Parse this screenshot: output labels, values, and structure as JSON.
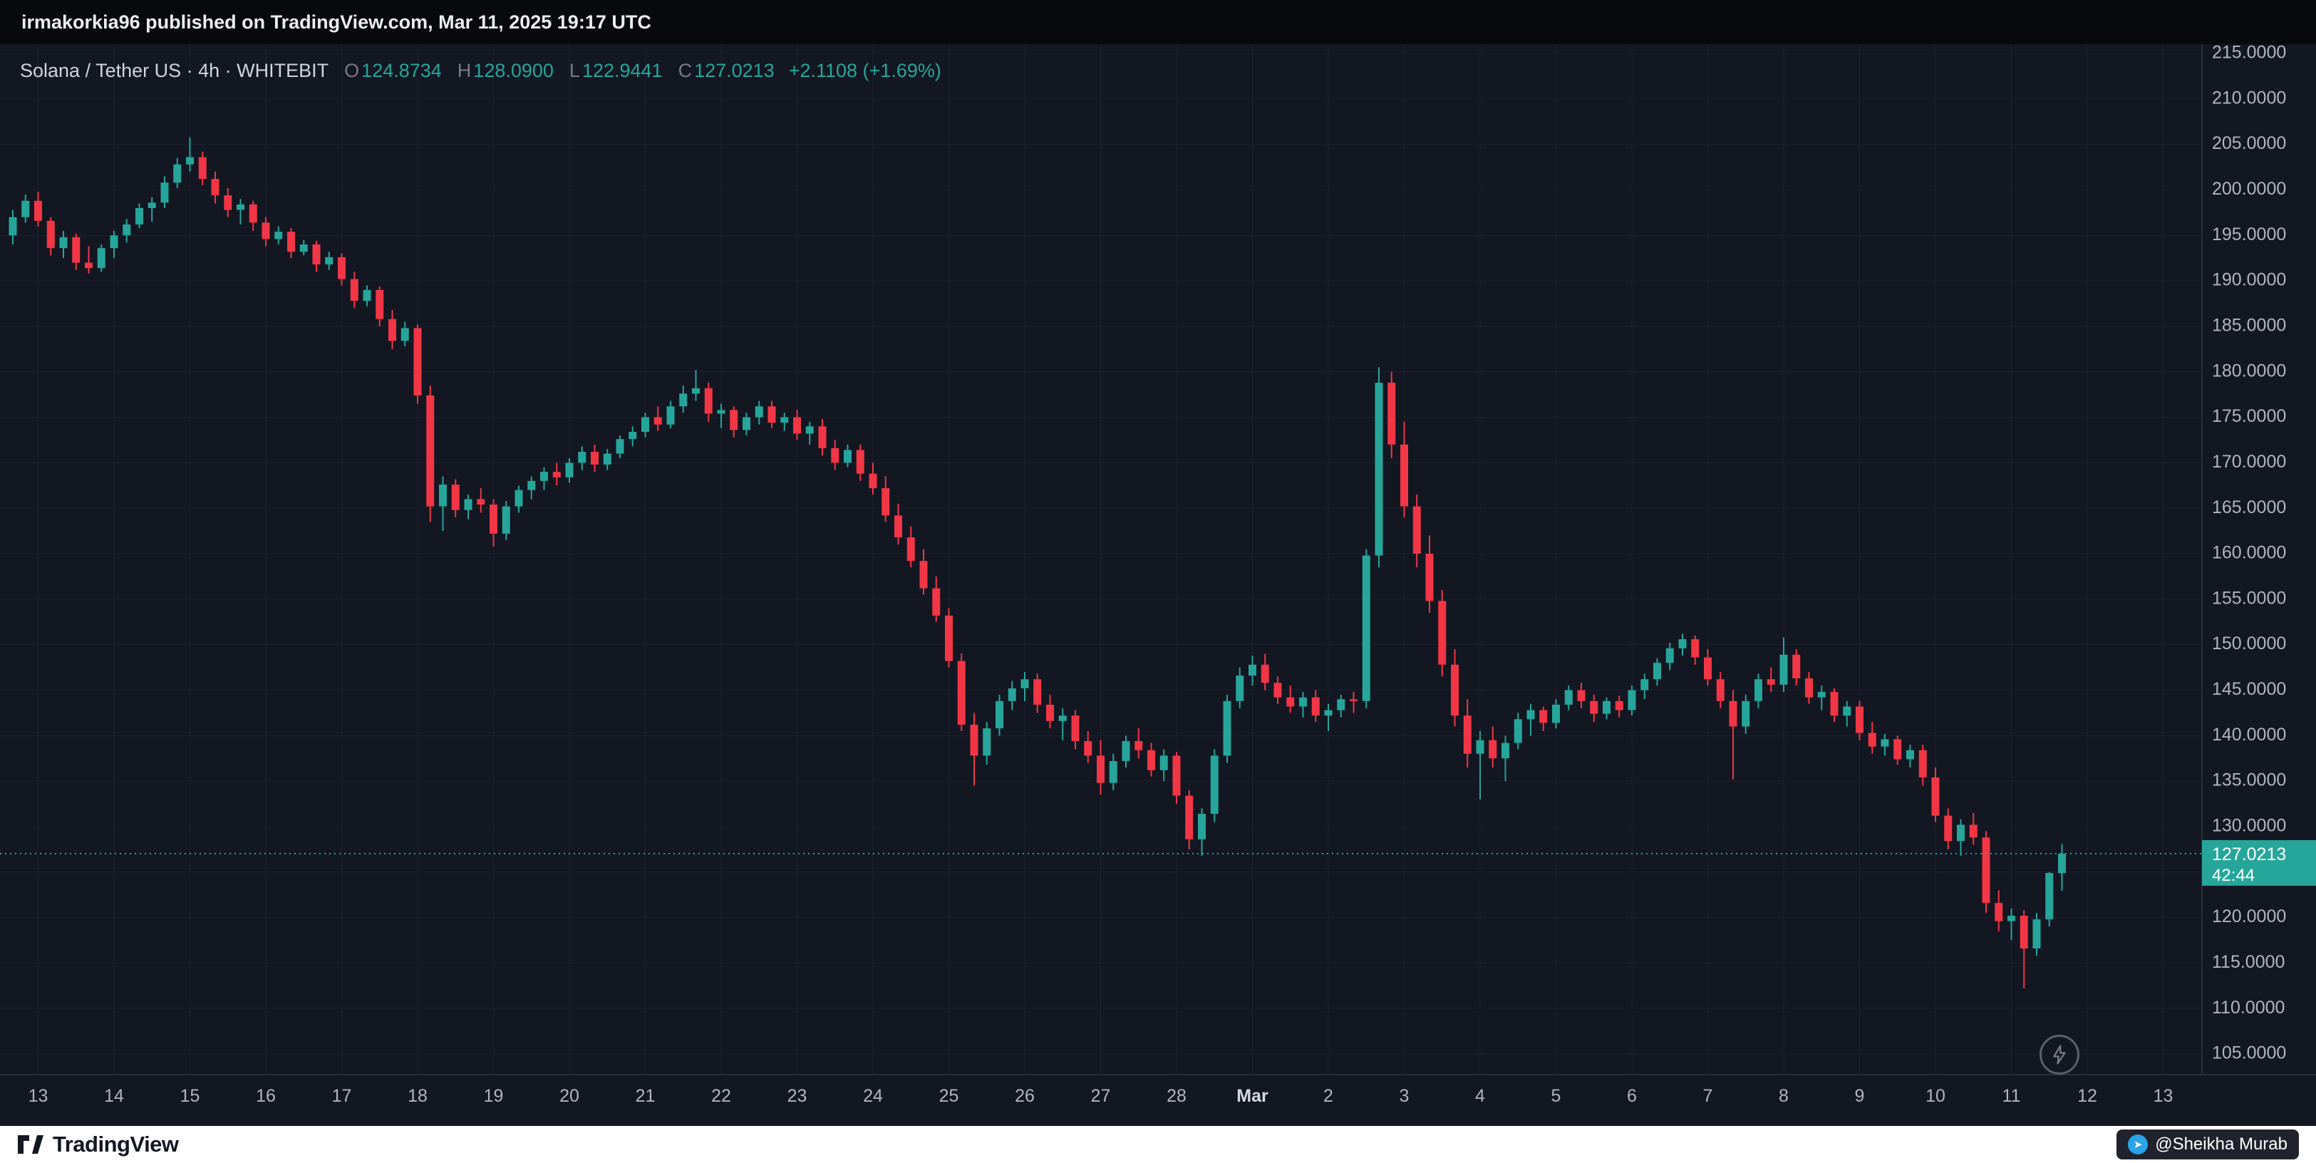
{
  "top_bar": {
    "text": "irmakorkia96 published on TradingView.com, Mar 11, 2025 19:17 UTC"
  },
  "header": {
    "symbol": "Solana / Tether US · 4h · WHITEBIT",
    "open_label": "O",
    "open": "124.8734",
    "high_label": "H",
    "high": "128.0900",
    "low_label": "L",
    "low": "122.9441",
    "close_label": "C",
    "close": "127.0213",
    "change": "+2.1108 (+1.69%)"
  },
  "footer": {
    "brand": "TradingView",
    "watermark": "@Sheikha Murab"
  },
  "icons": {
    "chart_action": "lightning-bolt-icon",
    "footer_logo": "tradingview-logo-icon",
    "watermark_icon": "paper-plane-icon"
  },
  "colors": {
    "up": "#26a69a",
    "down": "#f23645",
    "bg": "#131722",
    "grid": "#1e222f",
    "axis_line": "#2a2e39",
    "axis_text": "#b2b5be",
    "badge_text": "#ffffff",
    "top_bar_bg": "#08090d",
    "bottom_bar_bg": "#ffffff"
  },
  "chart_data": {
    "type": "candlestick",
    "title": "Solana / Tether US",
    "exchange": "WHITEBIT",
    "timeframe": "4h",
    "timezone": "UTC",
    "first_candle_time": "2025-02-12 16:00",
    "interval_hours": 4,
    "grid": true,
    "price_axis": {
      "min": 105,
      "max": 215,
      "step": 5
    },
    "price_ticks": [
      "215.0000",
      "210.0000",
      "205.0000",
      "200.0000",
      "195.0000",
      "190.0000",
      "185.0000",
      "180.0000",
      "175.0000",
      "170.0000",
      "165.0000",
      "160.0000",
      "155.0000",
      "150.0000",
      "145.0000",
      "140.0000",
      "135.0000",
      "130.0000",
      "125.0000",
      "120.0000",
      "115.0000",
      "110.0000",
      "105.0000"
    ],
    "time_ticks": [
      {
        "text": "13",
        "ci": 2
      },
      {
        "text": "14",
        "ci": 8
      },
      {
        "text": "15",
        "ci": 14
      },
      {
        "text": "16",
        "ci": 20
      },
      {
        "text": "17",
        "ci": 26
      },
      {
        "text": "18",
        "ci": 32
      },
      {
        "text": "19",
        "ci": 38
      },
      {
        "text": "20",
        "ci": 44
      },
      {
        "text": "21",
        "ci": 50
      },
      {
        "text": "22",
        "ci": 56
      },
      {
        "text": "23",
        "ci": 62
      },
      {
        "text": "24",
        "ci": 68
      },
      {
        "text": "25",
        "ci": 74
      },
      {
        "text": "26",
        "ci": 80
      },
      {
        "text": "27",
        "ci": 86
      },
      {
        "text": "28",
        "ci": 92
      },
      {
        "text": "Mar",
        "ci": 98,
        "major": true
      },
      {
        "text": "2",
        "ci": 104
      },
      {
        "text": "3",
        "ci": 110
      },
      {
        "text": "4",
        "ci": 116
      },
      {
        "text": "5",
        "ci": 122
      },
      {
        "text": "6",
        "ci": 128
      },
      {
        "text": "7",
        "ci": 134
      },
      {
        "text": "8",
        "ci": 140
      },
      {
        "text": "9",
        "ci": 146
      },
      {
        "text": "10",
        "ci": 152
      },
      {
        "text": "11",
        "ci": 158
      },
      {
        "text": "12",
        "ci": 164
      },
      {
        "text": "13",
        "ci": 170
      }
    ],
    "current": {
      "value": 127.0213,
      "label": "127.0213",
      "countdown": "42:44"
    },
    "ohlc_current": {
      "open": 124.8734,
      "high": 128.09,
      "low": 122.9441,
      "close": 127.0213,
      "change": 2.1108,
      "change_pct": 1.69
    },
    "candles": [
      [
        195,
        197.8,
        194,
        197
      ],
      [
        197,
        199.5,
        196.4,
        198.8
      ],
      [
        198.8,
        199.8,
        196,
        196.6
      ],
      [
        196.6,
        197,
        192.8,
        193.6
      ],
      [
        193.6,
        195.5,
        192.5,
        194.8
      ],
      [
        194.8,
        195.2,
        191.2,
        192
      ],
      [
        192,
        193.8,
        190.8,
        191.4
      ],
      [
        191.4,
        194,
        191,
        193.6
      ],
      [
        193.6,
        195.5,
        192.5,
        195
      ],
      [
        195,
        196.8,
        194.2,
        196.2
      ],
      [
        196.2,
        198.5,
        195.8,
        198
      ],
      [
        198,
        199.2,
        196.5,
        198.6
      ],
      [
        198.6,
        201.5,
        198,
        200.8
      ],
      [
        200.8,
        203.5,
        200.2,
        202.8
      ],
      [
        202.8,
        205.8,
        202,
        203.6
      ],
      [
        203.6,
        204.2,
        200.5,
        201.2
      ],
      [
        201.2,
        202,
        198.5,
        199.4
      ],
      [
        199.4,
        200.2,
        197,
        197.8
      ],
      [
        197.8,
        199,
        196.2,
        198.4
      ],
      [
        198.4,
        198.8,
        195.5,
        196.4
      ],
      [
        196.4,
        197,
        193.8,
        194.6
      ],
      [
        194.6,
        196,
        194,
        195.4
      ],
      [
        195.4,
        195.8,
        192.5,
        193.2
      ],
      [
        193.2,
        194.5,
        192.8,
        194
      ],
      [
        194,
        194.4,
        191,
        191.8
      ],
      [
        191.8,
        193.2,
        191.2,
        192.6
      ],
      [
        192.6,
        193,
        189.5,
        190.2
      ],
      [
        190.2,
        191,
        187,
        187.8
      ],
      [
        187.8,
        189.5,
        187.2,
        189
      ],
      [
        189,
        189.4,
        185,
        185.8
      ],
      [
        185.8,
        186.8,
        182.5,
        183.4
      ],
      [
        183.4,
        185.5,
        182.8,
        184.8
      ],
      [
        184.8,
        185.2,
        176.5,
        177.4
      ],
      [
        177.4,
        178.5,
        163.5,
        165.2
      ],
      [
        165.2,
        168.5,
        162.5,
        167.6
      ],
      [
        167.6,
        168.2,
        164,
        164.8
      ],
      [
        164.8,
        166.5,
        163.8,
        166
      ],
      [
        166,
        167.2,
        164.5,
        165.4
      ],
      [
        165.4,
        166,
        160.8,
        162.2
      ],
      [
        162.2,
        165.8,
        161.5,
        165.2
      ],
      [
        165.2,
        167.5,
        164.5,
        167
      ],
      [
        167,
        168.5,
        166,
        168
      ],
      [
        168,
        169.5,
        167,
        169
      ],
      [
        169,
        170,
        167.5,
        168.4
      ],
      [
        168.4,
        170.5,
        167.8,
        170
      ],
      [
        170,
        171.8,
        169.2,
        171.2
      ],
      [
        171.2,
        172,
        169,
        169.8
      ],
      [
        169.8,
        171.5,
        169.2,
        171
      ],
      [
        171,
        173,
        170.5,
        172.6
      ],
      [
        172.6,
        174,
        171.8,
        173.4
      ],
      [
        173.4,
        175.5,
        172.8,
        175
      ],
      [
        175,
        176.2,
        173.5,
        174.2
      ],
      [
        174.2,
        176.8,
        173.8,
        176.2
      ],
      [
        176.2,
        178.5,
        175.5,
        177.6
      ],
      [
        177.6,
        180.2,
        176.8,
        178.2
      ],
      [
        178.2,
        178.8,
        174.5,
        175.4
      ],
      [
        175.4,
        176.5,
        173.8,
        175.8
      ],
      [
        175.8,
        176.2,
        172.8,
        173.6
      ],
      [
        173.6,
        175.5,
        173,
        175
      ],
      [
        175,
        176.8,
        174.2,
        176.2
      ],
      [
        176.2,
        176.8,
        173.8,
        174.4
      ],
      [
        174.4,
        175.5,
        173.5,
        175
      ],
      [
        175,
        175.8,
        172.5,
        173.2
      ],
      [
        173.2,
        174.5,
        172,
        174
      ],
      [
        174,
        174.8,
        170.8,
        171.6
      ],
      [
        171.6,
        172.5,
        169.2,
        170
      ],
      [
        170,
        172,
        169.5,
        171.4
      ],
      [
        171.4,
        172,
        168,
        168.8
      ],
      [
        168.8,
        170,
        166.5,
        167.2
      ],
      [
        167.2,
        168.5,
        163.5,
        164.2
      ],
      [
        164.2,
        165.5,
        161,
        161.8
      ],
      [
        161.8,
        163,
        158.5,
        159.2
      ],
      [
        159.2,
        160.5,
        155.5,
        156.2
      ],
      [
        156.2,
        157.5,
        152.5,
        153.2
      ],
      [
        153.2,
        154,
        147.5,
        148.2
      ],
      [
        148.2,
        149,
        140.5,
        141.2
      ],
      [
        141.2,
        142.5,
        134.5,
        137.8
      ],
      [
        137.8,
        141.5,
        136.8,
        140.8
      ],
      [
        140.8,
        144.5,
        140,
        143.8
      ],
      [
        143.8,
        146,
        142.8,
        145.2
      ],
      [
        145.2,
        147,
        143.8,
        146.2
      ],
      [
        146.2,
        146.8,
        142.5,
        143.4
      ],
      [
        143.4,
        144.5,
        140.8,
        141.6
      ],
      [
        141.6,
        143,
        139.5,
        142.2
      ],
      [
        142.2,
        142.8,
        138.5,
        139.4
      ],
      [
        139.4,
        140.5,
        137,
        137.8
      ],
      [
        137.8,
        139.5,
        133.5,
        134.8
      ],
      [
        134.8,
        138,
        134,
        137.2
      ],
      [
        137.2,
        140,
        136.5,
        139.4
      ],
      [
        139.4,
        140.8,
        137.5,
        138.4
      ],
      [
        138.4,
        139.2,
        135.5,
        136.2
      ],
      [
        136.2,
        138.5,
        135,
        137.8
      ],
      [
        137.8,
        138.2,
        132.5,
        133.4
      ],
      [
        133.4,
        134,
        127.5,
        128.6
      ],
      [
        128.6,
        132,
        126.8,
        131.4
      ],
      [
        131.4,
        138.5,
        130.5,
        137.8
      ],
      [
        137.8,
        144.5,
        137,
        143.8
      ],
      [
        143.8,
        147.5,
        143,
        146.6
      ],
      [
        146.6,
        148.8,
        145.5,
        147.8
      ],
      [
        147.8,
        149,
        145,
        145.8
      ],
      [
        145.8,
        146.5,
        143.5,
        144.2
      ],
      [
        144.2,
        145.5,
        142.5,
        143.2
      ],
      [
        143.2,
        144.8,
        142,
        144.2
      ],
      [
        144.2,
        145,
        141.5,
        142.2
      ],
      [
        142.2,
        143.5,
        140.5,
        142.8
      ],
      [
        142.8,
        144.5,
        142,
        144
      ],
      [
        144,
        144.8,
        142.5,
        143.8
      ],
      [
        143.8,
        160.5,
        143,
        159.8
      ],
      [
        159.8,
        180.5,
        158.5,
        178.8
      ],
      [
        178.8,
        180,
        170.5,
        172
      ],
      [
        172,
        174.5,
        164,
        165.2
      ],
      [
        165.2,
        166.5,
        158.5,
        160
      ],
      [
        160,
        162,
        153.5,
        154.8
      ],
      [
        154.8,
        156,
        146.5,
        147.8
      ],
      [
        147.8,
        149.5,
        141,
        142.2
      ],
      [
        142.2,
        144,
        136.5,
        138
      ],
      [
        138,
        140.5,
        133,
        139.5
      ],
      [
        139.5,
        141,
        136.5,
        137.5
      ],
      [
        137.5,
        140,
        135,
        139.2
      ],
      [
        139.2,
        142.5,
        138.5,
        141.8
      ],
      [
        141.8,
        143.5,
        140,
        142.8
      ],
      [
        142.8,
        143.2,
        140.5,
        141.4
      ],
      [
        141.4,
        144,
        140.8,
        143.4
      ],
      [
        143.4,
        145.5,
        142.8,
        145
      ],
      [
        145,
        145.8,
        143,
        143.8
      ],
      [
        143.8,
        144.5,
        141.5,
        142.4
      ],
      [
        142.4,
        144.2,
        141.8,
        143.8
      ],
      [
        143.8,
        144.4,
        142,
        142.8
      ],
      [
        142.8,
        145.5,
        142.2,
        145
      ],
      [
        145,
        146.8,
        144,
        146.2
      ],
      [
        146.2,
        148.5,
        145.5,
        148
      ],
      [
        148,
        150.2,
        147.2,
        149.6
      ],
      [
        149.6,
        151.2,
        148.8,
        150.6
      ],
      [
        150.6,
        151,
        147.8,
        148.6
      ],
      [
        148.6,
        149.5,
        145.5,
        146.2
      ],
      [
        146.2,
        147,
        143,
        143.8
      ],
      [
        143.8,
        145,
        135.2,
        141
      ],
      [
        141,
        144.5,
        140.2,
        143.8
      ],
      [
        143.8,
        146.8,
        143,
        146.2
      ],
      [
        146.2,
        147.5,
        144.8,
        145.6
      ],
      [
        145.6,
        150.8,
        144.8,
        148.9
      ],
      [
        148.9,
        149.5,
        145.5,
        146.3
      ],
      [
        146.3,
        147,
        143.5,
        144.2
      ],
      [
        144.2,
        145.5,
        142.8,
        144.8
      ],
      [
        144.8,
        145.2,
        141.5,
        142.2
      ],
      [
        142.2,
        143.8,
        141,
        143.2
      ],
      [
        143.2,
        143.8,
        139.5,
        140.3
      ],
      [
        140.3,
        141.5,
        138,
        138.8
      ],
      [
        138.8,
        140.2,
        137.8,
        139.6
      ],
      [
        139.6,
        140,
        136.8,
        137.4
      ],
      [
        137.4,
        139,
        136.5,
        138.4
      ],
      [
        138.4,
        139,
        134.5,
        135.4
      ],
      [
        135.4,
        136.5,
        130.5,
        131.2
      ],
      [
        131.2,
        132,
        127.5,
        128.4
      ],
      [
        128.4,
        130.8,
        126.8,
        130.2
      ],
      [
        130.2,
        131.5,
        128,
        128.8
      ],
      [
        128.8,
        129.5,
        120.5,
        121.6
      ],
      [
        121.6,
        123,
        118.5,
        119.6
      ],
      [
        119.6,
        121,
        117.5,
        120.2
      ],
      [
        120.2,
        120.8,
        112.2,
        116.6
      ],
      [
        116.6,
        120.5,
        115.8,
        119.8
      ],
      [
        119.8,
        125,
        119,
        124.9
      ],
      [
        124.8734,
        128.09,
        122.9441,
        127.0213
      ]
    ]
  }
}
